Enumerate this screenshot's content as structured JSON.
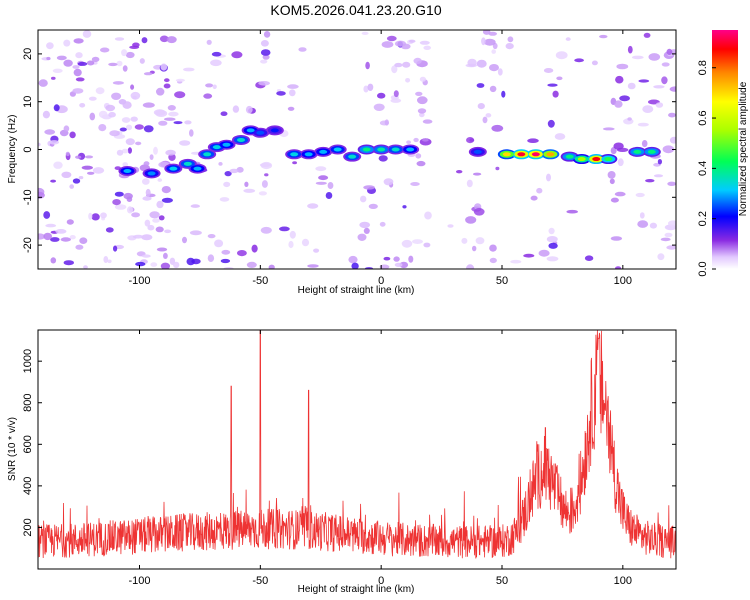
{
  "title": "KOM5.2026.041.23.20.G10",
  "colors": {
    "snr_line": "#ee3333",
    "axis": "#000000"
  },
  "chart_data": [
    {
      "type": "heatmap",
      "xlabel": "Height of straight line (km)",
      "ylabel": "Frequency (Hz)",
      "xlim": [
        -142,
        122
      ],
      "ylim": [
        -25,
        25
      ],
      "x_ticks": [
        -100,
        -50,
        0,
        50,
        100
      ],
      "y_ticks": [
        -20,
        -10,
        0,
        10,
        20
      ],
      "colorbar": {
        "label": "Normalized spectral amplitude",
        "range": [
          0,
          0.95
        ],
        "ticks": [
          "0.0",
          "0.2",
          "0.4",
          "0.6",
          "0.8"
        ]
      },
      "trace": [
        {
          "x": -105,
          "f": -4.5,
          "a": 0.3
        },
        {
          "x": -95,
          "f": -5.0,
          "a": 0.28
        },
        {
          "x": -86,
          "f": -4.0,
          "a": 0.32
        },
        {
          "x": -80,
          "f": -3.0,
          "a": 0.35
        },
        {
          "x": -76,
          "f": -4.0,
          "a": 0.3
        },
        {
          "x": -72,
          "f": -1.0,
          "a": 0.35
        },
        {
          "x": -68,
          "f": 0.5,
          "a": 0.33
        },
        {
          "x": -64,
          "f": 1.0,
          "a": 0.3
        },
        {
          "x": -58,
          "f": 2.0,
          "a": 0.35
        },
        {
          "x": -54,
          "f": 4.0,
          "a": 0.3
        },
        {
          "x": -50,
          "f": 3.5,
          "a": 0.25
        },
        {
          "x": -44,
          "f": 4.0,
          "a": 0.22
        },
        {
          "x": -36,
          "f": -1.0,
          "a": 0.33
        },
        {
          "x": -30,
          "f": -1.0,
          "a": 0.3
        },
        {
          "x": -24,
          "f": -0.5,
          "a": 0.3
        },
        {
          "x": -18,
          "f": 0.0,
          "a": 0.32
        },
        {
          "x": -12,
          "f": -1.5,
          "a": 0.35
        },
        {
          "x": -6,
          "f": 0.0,
          "a": 0.4
        },
        {
          "x": 0,
          "f": 0.0,
          "a": 0.38
        },
        {
          "x": 6,
          "f": 0.0,
          "a": 0.35
        },
        {
          "x": 12,
          "f": 0.0,
          "a": 0.3
        },
        {
          "x": 40,
          "f": -0.5,
          "a": 0.25
        },
        {
          "x": 52,
          "f": -1.0,
          "a": 0.7
        },
        {
          "x": 58,
          "f": -1.0,
          "a": 0.9
        },
        {
          "x": 64,
          "f": -1.0,
          "a": 0.93
        },
        {
          "x": 70,
          "f": -1.0,
          "a": 0.75
        },
        {
          "x": 78,
          "f": -1.5,
          "a": 0.4
        },
        {
          "x": 83,
          "f": -2.0,
          "a": 0.55
        },
        {
          "x": 89,
          "f": -2.0,
          "a": 0.88
        },
        {
          "x": 94,
          "f": -2.0,
          "a": 0.45
        },
        {
          "x": 106,
          "f": -0.5,
          "a": 0.4
        },
        {
          "x": 112,
          "f": -0.5,
          "a": 0.4
        }
      ]
    },
    {
      "type": "line",
      "xlabel": "Height of straight line (km)",
      "ylabel": "SNR (10 * v/v)",
      "xlim": [
        -142,
        122
      ],
      "ylim": [
        0,
        1150
      ],
      "x_ticks": [
        -100,
        -50,
        0,
        50,
        100
      ],
      "y_ticks": [
        200,
        400,
        600,
        800,
        1000
      ],
      "peaks": [
        {
          "x": -50,
          "y": 1150
        },
        {
          "x": -62,
          "y": 880
        },
        {
          "x": -30,
          "y": 860
        },
        {
          "x": 68,
          "y": 680
        },
        {
          "x": 90,
          "y": 1110
        }
      ]
    }
  ]
}
